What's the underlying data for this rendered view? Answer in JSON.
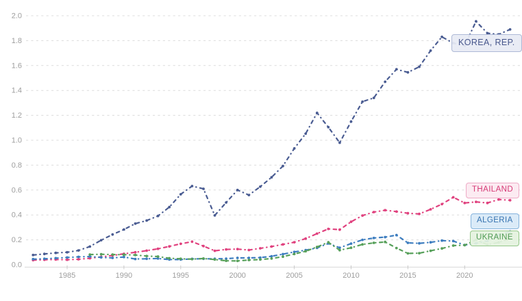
{
  "chart": {
    "background": "#ffffff",
    "grid_color": "#dcdcdc",
    "axis_line_color": "#d9d9d9",
    "tick_mark_color": "#c9c9c9",
    "tick_label_color": "#9d9d9d"
  },
  "chart_data": {
    "type": "line",
    "title": "",
    "xlabel": "",
    "ylabel": "",
    "grid": true,
    "line_style": "dash-dot",
    "legend_position": "end-of-line-labels",
    "ylim": [
      0,
      2.0
    ],
    "x_range": [
      1982,
      2024
    ],
    "yticks": [
      0,
      0.2,
      0.4,
      0.6,
      0.8,
      1.0,
      1.2,
      1.4,
      1.6,
      1.8,
      2.0
    ],
    "ytick_labels": [
      "0.0",
      "0.2",
      "0.4",
      "0.6",
      "0.8",
      "1.0",
      "1.2",
      "1.4",
      "1.6",
      "1.8",
      "2.0"
    ],
    "xticks": [
      1985,
      1990,
      1995,
      2000,
      2005,
      2010,
      2015,
      2020
    ],
    "xtick_labels": [
      "1985",
      "1990",
      "1995",
      "2000",
      "2005",
      "2010",
      "2015",
      "2020"
    ],
    "x": [
      1982,
      1983,
      1984,
      1985,
      1986,
      1987,
      1988,
      1989,
      1990,
      1991,
      1992,
      1993,
      1994,
      1995,
      1996,
      1997,
      1998,
      1999,
      2000,
      2001,
      2002,
      2003,
      2004,
      2005,
      2006,
      2007,
      2008,
      2009,
      2010,
      2011,
      2012,
      2013,
      2014,
      2015,
      2016,
      2017,
      2018,
      2019,
      2020,
      2021,
      2022,
      2023,
      2024
    ],
    "series": [
      {
        "name": "Korea, Rep.",
        "label": "KOREA, REP.",
        "color": "#4a5c92",
        "label_text_color": "#47568c",
        "label_bg": "rgba(231,235,244,0.93)",
        "label_border": "#aeb9d6",
        "values": [
          0.078,
          0.087,
          0.095,
          0.1,
          0.115,
          0.146,
          0.197,
          0.243,
          0.283,
          0.33,
          0.355,
          0.392,
          0.463,
          0.566,
          0.632,
          0.61,
          0.396,
          0.5,
          0.6,
          0.56,
          0.627,
          0.702,
          0.793,
          0.934,
          1.053,
          1.22,
          1.105,
          0.98,
          1.15,
          1.31,
          1.34,
          1.47,
          1.57,
          1.545,
          1.59,
          1.72,
          1.83,
          1.78,
          1.76,
          1.955,
          1.86,
          1.85,
          1.89
        ]
      },
      {
        "name": "Thailand",
        "label": "THAILAND",
        "color": "#e0417e",
        "label_text_color": "#d63a76",
        "label_bg": "rgba(252,233,241,0.93)",
        "label_border": "#eeaac6",
        "values": [
          0.037,
          0.04,
          0.042,
          0.04,
          0.044,
          0.052,
          0.063,
          0.074,
          0.088,
          0.1,
          0.113,
          0.128,
          0.147,
          0.168,
          0.185,
          0.15,
          0.112,
          0.123,
          0.126,
          0.118,
          0.132,
          0.146,
          0.163,
          0.181,
          0.21,
          0.25,
          0.288,
          0.282,
          0.345,
          0.395,
          0.423,
          0.438,
          0.427,
          0.414,
          0.408,
          0.445,
          0.487,
          0.542,
          0.496,
          0.505,
          0.496,
          0.524,
          0.518
        ]
      },
      {
        "name": "Algeria",
        "label": "ALGERIA",
        "color": "#3d7dbf",
        "label_text_color": "#3572b0",
        "label_bg": "rgba(216,233,248,0.93)",
        "label_border": "#84b3dd",
        "values": [
          0.045,
          0.048,
          0.053,
          0.058,
          0.063,
          0.066,
          0.059,
          0.055,
          0.062,
          0.046,
          0.048,
          0.05,
          0.042,
          0.042,
          0.047,
          0.048,
          0.048,
          0.049,
          0.055,
          0.055,
          0.057,
          0.068,
          0.085,
          0.103,
          0.117,
          0.135,
          0.171,
          0.137,
          0.17,
          0.2,
          0.215,
          0.222,
          0.238,
          0.176,
          0.172,
          0.18,
          0.194,
          0.19,
          0.158,
          0.172,
          0.192,
          0.24,
          0.267
        ]
      },
      {
        "name": "Ukraine",
        "label": "UKRAINE",
        "color": "#57a05a",
        "label_text_color": "#4f9a53",
        "label_bg": "rgba(228,242,223,0.93)",
        "label_border": "#94c788",
        "values": [
          null,
          null,
          null,
          null,
          null,
          0.082,
          0.084,
          0.082,
          0.081,
          0.078,
          0.07,
          0.066,
          0.052,
          0.048,
          0.045,
          0.05,
          0.042,
          0.032,
          0.031,
          0.038,
          0.042,
          0.05,
          0.065,
          0.086,
          0.108,
          0.143,
          0.18,
          0.117,
          0.136,
          0.163,
          0.176,
          0.183,
          0.134,
          0.091,
          0.093,
          0.112,
          0.131,
          0.154,
          0.157,
          0.2,
          0.161,
          0.179,
          0.21
        ]
      }
    ]
  }
}
